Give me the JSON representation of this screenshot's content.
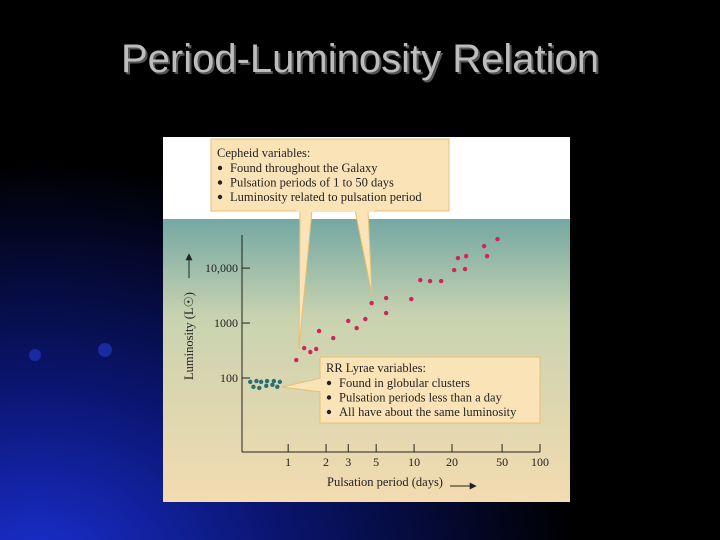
{
  "chart_data": {
    "type": "scatter",
    "title": "Period-Luminosity Relation",
    "x_label": "Pulsation period (days)",
    "y_label": "Luminosity (L☉)",
    "x_log": true,
    "y_log": true,
    "xlim": [
      0.43,
      100
    ],
    "xticks": [
      1,
      2,
      3,
      5,
      10,
      20,
      50,
      100
    ],
    "ylim": [
      4.5,
      40000
    ],
    "yticks": [
      100,
      1000,
      {
        "value": 10000,
        "label": "10,000"
      }
    ],
    "series": [
      {
        "name": "Cepheid variables:",
        "color": "#d0245a",
        "notes": [
          "Found throughout the Galaxy",
          "Pulsation periods of 1 to 50 days",
          "Luminosity related to pulsation period"
        ],
        "x": [
          1.16,
          1.34,
          1.5,
          1.67,
          1.76,
          2.28,
          3.0,
          3.5,
          4.1,
          4.6,
          6.0,
          6.0,
          9.5,
          11.2,
          13.4,
          16.4,
          22.3,
          20.8,
          25.9,
          25.4,
          36,
          38,
          46
        ],
        "values": [
          212,
          351,
          297,
          337,
          716,
          533,
          1090,
          811,
          1180,
          2310,
          2850,
          1520,
          2730,
          6050,
          5800,
          5800,
          15200,
          9200,
          16500,
          9600,
          25100,
          16500,
          33700
        ]
      },
      {
        "name": "RR Lyrae variables:",
        "color": "#2a6f73",
        "notes": [
          "Found in globular clusters",
          "Pulsation periods less than a day",
          "All have about the same luminosity"
        ],
        "x": [
          0.5,
          0.56,
          0.61,
          0.68,
          0.77,
          0.86,
          0.53,
          0.59,
          0.67,
          0.75,
          0.82
        ],
        "values": [
          85,
          88,
          85,
          88,
          88,
          85,
          69,
          66,
          72,
          75,
          69
        ]
      }
    ]
  }
}
